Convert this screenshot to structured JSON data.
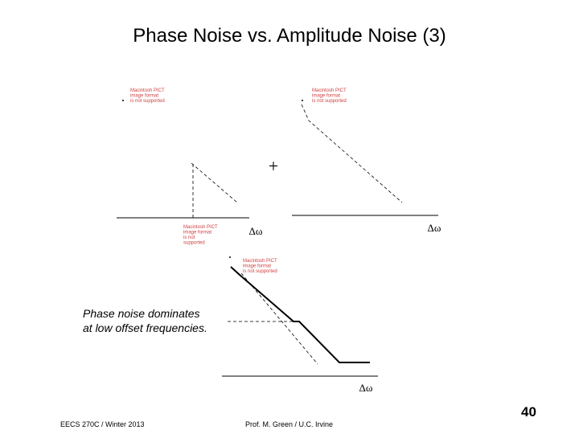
{
  "header": {
    "title": "Phase Noise vs. Amplitude Noise (3)"
  },
  "figures": [
    {
      "placeholder": [
        "Macintosh PICT",
        "image format",
        "is not supported"
      ]
    },
    {
      "placeholder": [
        "Macintosh PICT",
        "image format",
        "is not supported"
      ]
    },
    {
      "placeholder": [
        "Macintosh PICT",
        "image format",
        "is not",
        "supported"
      ]
    },
    {
      "placeholder": [
        "Macintosh PICT",
        "image format",
        "is not supported"
      ]
    }
  ],
  "plus": "+",
  "axis_labels": [
    "Δω",
    "Δω",
    "Δω"
  ],
  "caption": [
    "Phase noise dominates",
    "at low offset frequencies."
  ],
  "footer": {
    "left": "EECS 270C / Winter 2013",
    "center": "Prof. M. Green / U.C. Irvine",
    "page": "40"
  }
}
